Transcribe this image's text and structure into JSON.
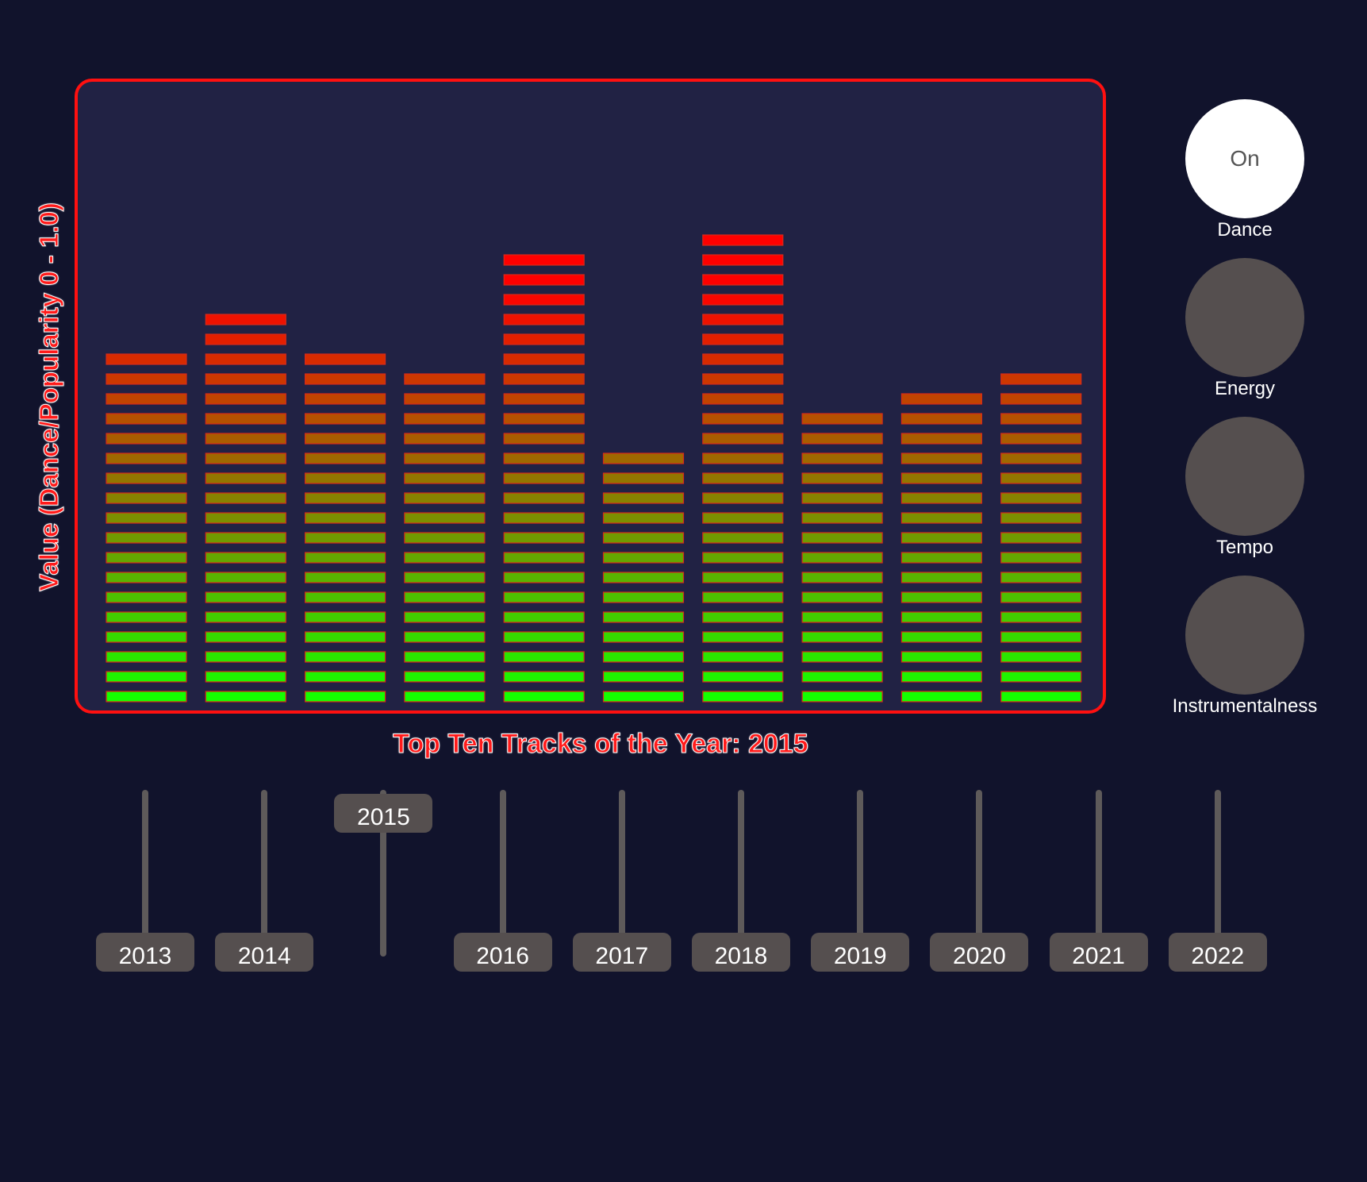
{
  "chart_data": {
    "type": "bar",
    "ylabel": "Value (Dance/Popularity 0 - 1.0)",
    "title": "Top Ten Tracks of the Year: 2015",
    "ylim": [
      0,
      1
    ],
    "values": [
      0.55,
      0.61,
      0.55,
      0.52,
      0.69,
      0.4,
      0.72,
      0.46,
      0.49,
      0.52
    ],
    "segments_max": 33,
    "color_low": "#14ff00",
    "color_high": "#ff0000"
  },
  "toggles": [
    {
      "label": "Dance",
      "state_text": "On",
      "active": true
    },
    {
      "label": "Energy",
      "state_text": "",
      "active": false
    },
    {
      "label": "Tempo",
      "state_text": "",
      "active": false
    },
    {
      "label": "Instrumentalness",
      "state_text": "",
      "active": false
    }
  ],
  "years": [
    {
      "label": "2013",
      "selected": false
    },
    {
      "label": "2014",
      "selected": false
    },
    {
      "label": "2015",
      "selected": true
    },
    {
      "label": "2016",
      "selected": false
    },
    {
      "label": "2017",
      "selected": false
    },
    {
      "label": "2018",
      "selected": false
    },
    {
      "label": "2019",
      "selected": false
    },
    {
      "label": "2020",
      "selected": false
    },
    {
      "label": "2021",
      "selected": false
    },
    {
      "label": "2022",
      "selected": false
    }
  ]
}
